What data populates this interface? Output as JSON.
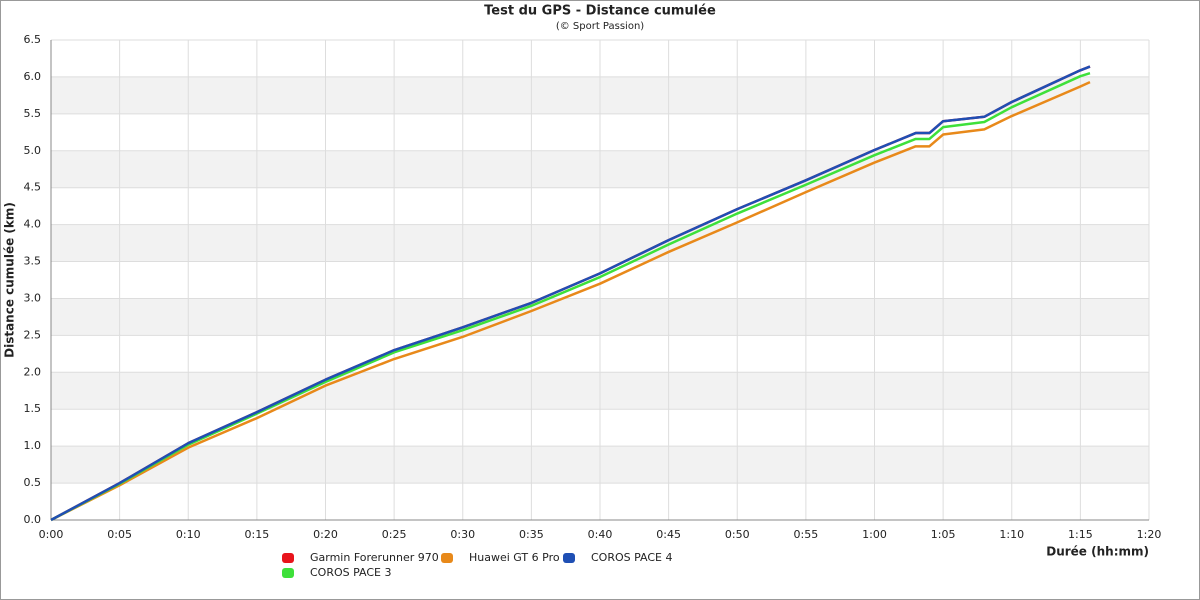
{
  "chart_data": {
    "type": "line",
    "title": "Test du GPS - Distance cumulée",
    "subtitle": "(© Sport Passion)",
    "x_label": "Durée (hh:mm)",
    "y_label": "Distance cumulée (km)",
    "x": [
      0,
      5,
      10,
      15,
      20,
      25,
      30,
      35,
      40,
      45,
      50,
      55,
      60,
      63,
      64,
      65,
      68,
      70,
      75,
      75.7
    ],
    "series": [
      {
        "name": "Garmin Forerunner 970",
        "color": "#e8141c",
        "values": [
          0,
          0.5,
          1.04,
          1.46,
          1.9,
          2.3,
          2.61,
          2.94,
          3.34,
          3.79,
          4.21,
          4.6,
          5.01,
          5.24,
          5.24,
          5.4,
          5.46,
          5.66,
          6.09,
          6.14
        ]
      },
      {
        "name": "Huawei GT 6 Pro",
        "color": "#e8891a",
        "values": [
          0,
          0.47,
          0.98,
          1.38,
          1.82,
          2.18,
          2.48,
          2.83,
          3.2,
          3.63,
          4.03,
          4.44,
          4.84,
          5.06,
          5.06,
          5.22,
          5.29,
          5.47,
          5.87,
          5.93
        ]
      },
      {
        "name": "COROS PACE 4",
        "color": "#1f4fb4",
        "values": [
          0,
          0.5,
          1.04,
          1.46,
          1.9,
          2.3,
          2.61,
          2.94,
          3.34,
          3.79,
          4.21,
          4.6,
          5.01,
          5.24,
          5.24,
          5.4,
          5.46,
          5.66,
          6.09,
          6.14
        ]
      },
      {
        "name": "COROS PACE 3",
        "color": "#3ee03a",
        "values": [
          0,
          0.49,
          1.02,
          1.44,
          1.87,
          2.27,
          2.57,
          2.9,
          3.29,
          3.73,
          4.15,
          4.54,
          4.94,
          5.16,
          5.16,
          5.32,
          5.39,
          5.59,
          6.01,
          6.05
        ]
      }
    ],
    "xlim": [
      0,
      80
    ],
    "xticks": [
      {
        "value": 0,
        "label": "0:00"
      },
      {
        "value": 5,
        "label": "0:05"
      },
      {
        "value": 10,
        "label": "0:10"
      },
      {
        "value": 15,
        "label": "0:15"
      },
      {
        "value": 20,
        "label": "0:20"
      },
      {
        "value": 25,
        "label": "0:25"
      },
      {
        "value": 30,
        "label": "0:30"
      },
      {
        "value": 35,
        "label": "0:35"
      },
      {
        "value": 40,
        "label": "0:40"
      },
      {
        "value": 45,
        "label": "0:45"
      },
      {
        "value": 50,
        "label": "0:50"
      },
      {
        "value": 55,
        "label": "0:55"
      },
      {
        "value": 60,
        "label": "1:00"
      },
      {
        "value": 65,
        "label": "1:05"
      },
      {
        "value": 70,
        "label": "1:10"
      },
      {
        "value": 75,
        "label": "1:15"
      },
      {
        "value": 80,
        "label": "1:20"
      }
    ],
    "ylim": [
      0,
      6.5
    ],
    "yticks": [
      {
        "value": 0,
        "label": "0.0"
      },
      0.5,
      {
        "value": 1,
        "label": "1.0"
      },
      1.5,
      {
        "value": 2,
        "label": "2.0"
      },
      2.5,
      {
        "value": 3,
        "label": "3.0"
      },
      3.5,
      {
        "value": 4,
        "label": "4.0"
      },
      4.5,
      {
        "value": 5,
        "label": "5.0"
      },
      5.5,
      {
        "value": 6,
        "label": "6.0"
      },
      6.5
    ],
    "grid": true
  }
}
